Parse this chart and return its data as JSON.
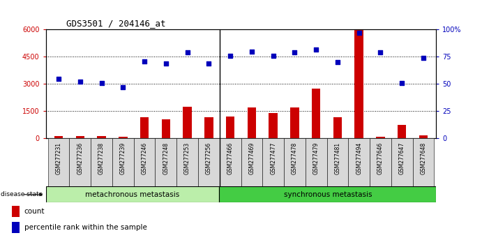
{
  "title": "GDS3501 / 204146_at",
  "samples": [
    "GSM277231",
    "GSM277236",
    "GSM277238",
    "GSM277239",
    "GSM277246",
    "GSM277248",
    "GSM277253",
    "GSM277256",
    "GSM277466",
    "GSM277469",
    "GSM277477",
    "GSM277478",
    "GSM277479",
    "GSM277481",
    "GSM277494",
    "GSM277646",
    "GSM277647",
    "GSM277648"
  ],
  "counts": [
    130,
    110,
    120,
    90,
    1150,
    1050,
    1750,
    1150,
    1200,
    1700,
    1380,
    1700,
    2750,
    1180,
    6000,
    80,
    750,
    160
  ],
  "percentile_raw": [
    55,
    52,
    51,
    47,
    71,
    69,
    79,
    69,
    76,
    80,
    76,
    79,
    82,
    70,
    97,
    79,
    51,
    74
  ],
  "group1_label": "metachronous metastasis",
  "group2_label": "synchronous metastasis",
  "group1_count": 8,
  "ylim_left": [
    0,
    6000
  ],
  "ylim_right": [
    0,
    100
  ],
  "yticks_left": [
    0,
    1500,
    3000,
    4500,
    6000
  ],
  "yticks_right": [
    0,
    25,
    50,
    75,
    100
  ],
  "bar_color": "#cc0000",
  "dot_color": "#0000bb",
  "group1_color": "#bbeeaa",
  "group2_color": "#44cc44",
  "bar_width": 0.4,
  "legend_count_label": "count",
  "legend_percentile_label": "percentile rank within the sample"
}
